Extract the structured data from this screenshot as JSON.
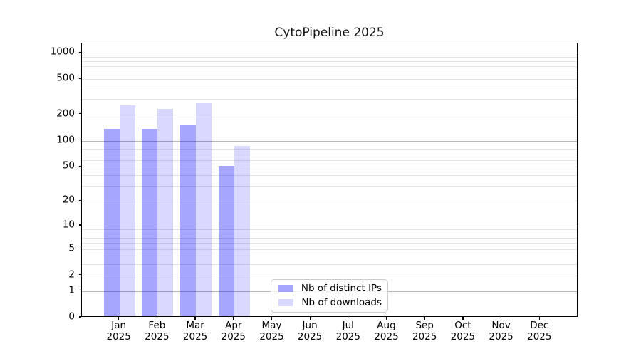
{
  "chart_data": {
    "type": "bar",
    "title": "CytoPipeline 2025",
    "categories": [
      "Jan",
      "Feb",
      "Mar",
      "Apr",
      "May",
      "Jun",
      "Jul",
      "Aug",
      "Sep",
      "Oct",
      "Nov",
      "Dec"
    ],
    "year_label": "2025",
    "series": [
      {
        "name": "Nb of distinct IPs",
        "color": "rgba(0,0,255,0.35)",
        "values": [
          137,
          136,
          149,
          51,
          0,
          0,
          0,
          0,
          0,
          0,
          0,
          0
        ]
      },
      {
        "name": "Nb of downloads",
        "color": "rgba(0,0,255,0.15)",
        "values": [
          255,
          231,
          274,
          87,
          0,
          0,
          0,
          0,
          0,
          0,
          0,
          0
        ]
      }
    ],
    "y_ticks": [
      0,
      1,
      2,
      5,
      10,
      20,
      50,
      100,
      200,
      500,
      1000
    ],
    "scale": "log1p",
    "ylim": [
      0,
      1300
    ],
    "grid": "both",
    "grid_major_at": [
      1,
      10,
      100,
      1000
    ],
    "legend_position": "lower-center",
    "colors": {
      "grid_major": "#b5b5b5",
      "grid_minor": "#e4e4e4",
      "spine": "#000000",
      "text": "#000000"
    }
  }
}
